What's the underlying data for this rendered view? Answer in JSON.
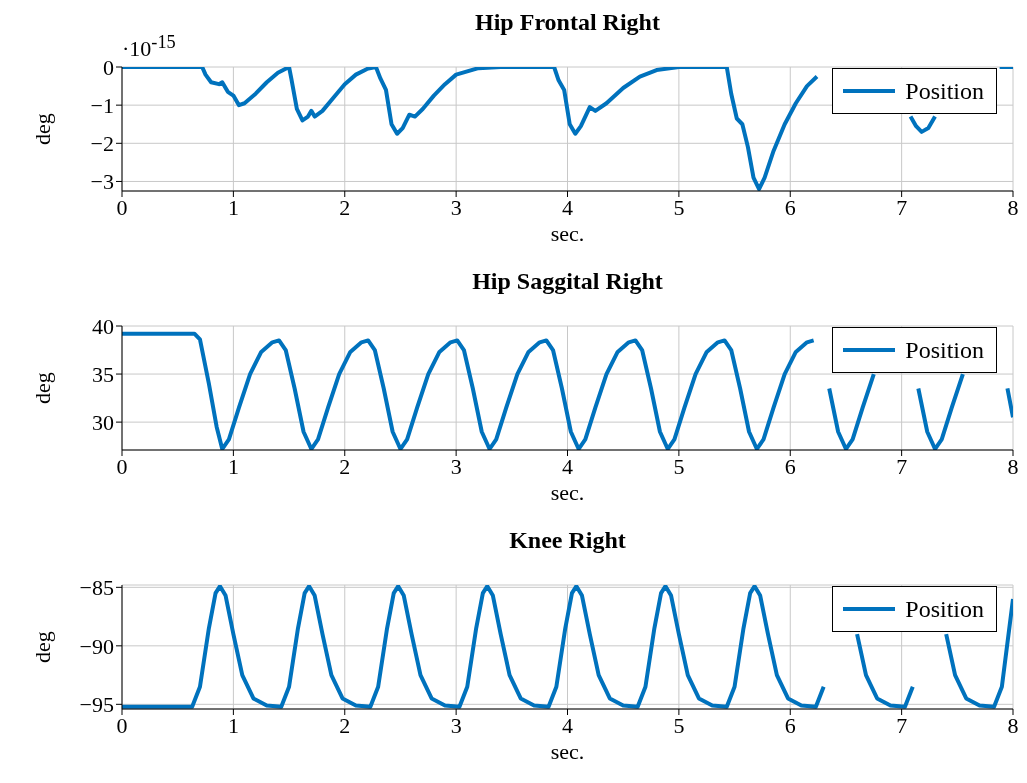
{
  "chart_data": [
    {
      "type": "line",
      "title": "Hip Frontal Right",
      "xlabel": "sec.",
      "ylabel": "deg",
      "annotations": [
        "·10$^{-15}$"
      ],
      "xlim": [
        0,
        8
      ],
      "xticks": [
        0,
        1,
        2,
        3,
        4,
        5,
        6,
        7,
        8
      ],
      "ylim": [
        -3.25,
        0
      ],
      "yticks": [
        -3,
        -2,
        -1,
        0
      ],
      "grid": true,
      "legend": "top right",
      "x": [
        0,
        0.72,
        0.75,
        0.8,
        0.87,
        0.9,
        0.95,
        1.0,
        1.05,
        1.1,
        1.2,
        1.3,
        1.4,
        1.5,
        1.52,
        1.57,
        1.62,
        1.67,
        1.7,
        1.73,
        1.8,
        1.9,
        2.0,
        2.1,
        2.2,
        2.28,
        2.32,
        2.37,
        2.42,
        2.47,
        2.52,
        2.58,
        2.63,
        2.7,
        2.8,
        2.9,
        3.0,
        3.2,
        3.4,
        3.88,
        3.92,
        3.97,
        4.02,
        4.07,
        4.12,
        4.2,
        4.25,
        4.35,
        4.5,
        4.65,
        4.8,
        5.0,
        5.43,
        5.47,
        5.52,
        5.57,
        5.62,
        5.67,
        5.72,
        5.77,
        5.85,
        5.95,
        6.05,
        6.15,
        6.24,
        6.3,
        7.05,
        7.08,
        7.13,
        7.18,
        7.24,
        7.3,
        7.35,
        7.88,
        8
      ],
      "series": [
        {
          "name": "Position",
          "color": "#0072bd",
          "values": [
            0,
            0,
            -0.2,
            -0.4,
            -0.45,
            -0.4,
            -0.65,
            -0.75,
            -1.0,
            -0.95,
            -0.7,
            -0.4,
            -0.15,
            0,
            -0.3,
            -1.1,
            -1.4,
            -1.3,
            -1.15,
            -1.3,
            -1.15,
            -0.8,
            -0.45,
            -0.2,
            -0.05,
            0,
            -0.3,
            -0.6,
            -1.5,
            -1.75,
            -1.6,
            -1.25,
            -1.3,
            -1.1,
            -0.75,
            -0.45,
            -0.2,
            -0.03,
            0,
            0,
            -0.35,
            -0.6,
            -1.5,
            -1.75,
            -1.55,
            -1.05,
            -1.15,
            -0.95,
            -0.55,
            -0.25,
            -0.08,
            0,
            0,
            -0.7,
            -1.35,
            -1.5,
            -2.1,
            -2.9,
            -3.2,
            -2.9,
            -2.2,
            -1.5,
            -0.95,
            -0.5,
            -0.25,
            null,
            null,
            -1.3,
            -1.55,
            -1.7,
            -1.6,
            -1.3,
            null,
            0,
            0
          ]
        }
      ]
    },
    {
      "type": "line",
      "title": "Hip Saggital Right",
      "xlabel": "sec.",
      "ylabel": "deg",
      "xlim": [
        0,
        8
      ],
      "xticks": [
        0,
        1,
        2,
        3,
        4,
        5,
        6,
        7,
        8
      ],
      "ylim": [
        27.1,
        40
      ],
      "yticks": [
        30,
        35,
        40
      ],
      "grid": true,
      "legend": "top right",
      "x": [
        0,
        0.65,
        0.7,
        0.78,
        0.85,
        0.9,
        0.96,
        1.05,
        1.15,
        1.25,
        1.35,
        1.41,
        1.47,
        1.55,
        1.63,
        1.7,
        1.76,
        1.85,
        1.95,
        2.05,
        2.15,
        2.21,
        2.27,
        2.35,
        2.43,
        2.5,
        2.56,
        2.65,
        2.75,
        2.85,
        2.95,
        3.01,
        3.07,
        3.15,
        3.23,
        3.3,
        3.36,
        3.45,
        3.55,
        3.65,
        3.75,
        3.81,
        3.87,
        3.95,
        4.03,
        4.1,
        4.16,
        4.25,
        4.35,
        4.45,
        4.55,
        4.61,
        4.67,
        4.75,
        4.83,
        4.9,
        4.96,
        5.05,
        5.15,
        5.25,
        5.35,
        5.41,
        5.47,
        5.55,
        5.63,
        5.7,
        5.76,
        5.85,
        5.95,
        6.05,
        6.15,
        6.21,
        6.27,
        6.35,
        6.43,
        6.5,
        6.56,
        6.65,
        6.75,
        6.85,
        7.07,
        7.15,
        7.23,
        7.3,
        7.36,
        7.45,
        7.55,
        7.65,
        7.87,
        7.95,
        8.0
      ],
      "series": [
        {
          "name": "Position",
          "color": "#0072bd",
          "values": [
            39.2,
            39.2,
            38.6,
            34,
            29.5,
            27.2,
            28.2,
            31.5,
            35,
            37.3,
            38.3,
            38.5,
            37.5,
            33.5,
            29,
            27.2,
            28.2,
            31.5,
            35,
            37.3,
            38.3,
            38.5,
            37.5,
            33.5,
            29,
            27.2,
            28.2,
            31.5,
            35,
            37.3,
            38.3,
            38.5,
            37.5,
            33.5,
            29,
            27.2,
            28.2,
            31.5,
            35,
            37.3,
            38.3,
            38.5,
            37.5,
            33.5,
            29,
            27.2,
            28.2,
            31.5,
            35,
            37.3,
            38.3,
            38.5,
            37.5,
            33.5,
            29,
            27.2,
            28.2,
            31.5,
            35,
            37.3,
            38.3,
            38.5,
            37.5,
            33.5,
            29,
            27.2,
            28.2,
            31.5,
            35,
            37.3,
            38.3,
            38.5,
            null,
            33.5,
            29,
            27.2,
            28.2,
            31.5,
            35,
            null,
            null,
            33.5,
            29,
            27.2,
            28.2,
            31.5,
            35,
            null,
            null,
            33.5,
            30.5
          ]
        }
      ]
    },
    {
      "type": "line",
      "title": "Knee Right",
      "xlabel": "sec.",
      "ylabel": "deg",
      "xlim": [
        0,
        8
      ],
      "xticks": [
        0,
        1,
        2,
        3,
        4,
        5,
        6,
        7,
        8
      ],
      "ylim": [
        -95.4,
        -84.8
      ],
      "yticks": [
        -95,
        -90,
        -85
      ],
      "grid": true,
      "legend": "top right",
      "x": [
        0,
        0.63,
        0.7,
        0.78,
        0.84,
        0.88,
        0.93,
        1.0,
        1.08,
        1.18,
        1.3,
        1.43,
        1.5,
        1.58,
        1.64,
        1.68,
        1.73,
        1.8,
        1.88,
        1.98,
        2.1,
        2.23,
        2.3,
        2.38,
        2.44,
        2.48,
        2.53,
        2.6,
        2.68,
        2.78,
        2.9,
        3.03,
        3.1,
        3.18,
        3.24,
        3.28,
        3.33,
        3.4,
        3.48,
        3.58,
        3.7,
        3.83,
        3.9,
        3.98,
        4.04,
        4.08,
        4.13,
        4.2,
        4.28,
        4.38,
        4.5,
        4.63,
        4.7,
        4.78,
        4.84,
        4.88,
        4.93,
        5.0,
        5.08,
        5.18,
        5.3,
        5.43,
        5.5,
        5.58,
        5.64,
        5.68,
        5.73,
        5.8,
        5.88,
        5.98,
        6.1,
        6.23,
        6.3,
        6.38,
        6.6,
        6.68,
        6.78,
        6.9,
        7.03,
        7.1,
        7.18,
        7.4,
        7.48,
        7.58,
        7.7,
        7.83,
        7.9,
        8.0
      ],
      "series": [
        {
          "name": "Position",
          "color": "#0072bd",
          "values": [
            -95.2,
            -95.2,
            -93.5,
            -88.5,
            -85.5,
            -84.9,
            -85.7,
            -89,
            -92.5,
            -94.5,
            -95.1,
            -95.2,
            -93.5,
            -88.5,
            -85.5,
            -84.9,
            -85.7,
            -89,
            -92.5,
            -94.5,
            -95.1,
            -95.2,
            -93.5,
            -88.5,
            -85.5,
            -84.9,
            -85.7,
            -89,
            -92.5,
            -94.5,
            -95.1,
            -95.2,
            -93.5,
            -88.5,
            -85.5,
            -84.9,
            -85.7,
            -89,
            -92.5,
            -94.5,
            -95.1,
            -95.2,
            -93.5,
            -88.5,
            -85.5,
            -84.9,
            -85.7,
            -89,
            -92.5,
            -94.5,
            -95.1,
            -95.2,
            -93.5,
            -88.5,
            -85.5,
            -84.9,
            -85.7,
            -89,
            -92.5,
            -94.5,
            -95.1,
            -95.2,
            -93.5,
            -88.5,
            -85.5,
            -84.9,
            -85.7,
            -89,
            -92.5,
            -94.5,
            -95.1,
            -95.2,
            -93.5,
            null,
            -89,
            -92.5,
            -94.5,
            -95.1,
            -95.2,
            -93.5,
            null,
            -89,
            -92.5,
            -94.5,
            -95.1,
            -95.2,
            -93.5,
            -86
          ]
        }
      ]
    }
  ]
}
